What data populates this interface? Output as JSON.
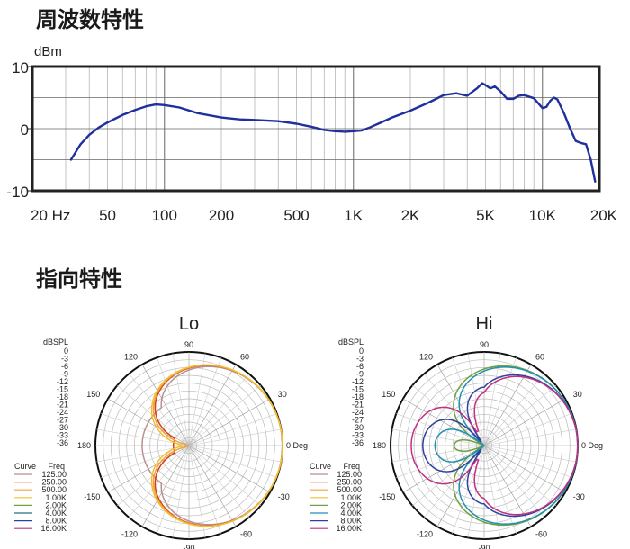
{
  "sections": {
    "freq_title": "周波数特性",
    "dir_title": "指向特性"
  },
  "chart_data": [
    {
      "type": "line",
      "ylabel": "dBm",
      "xscale": "log",
      "xlim": [
        20,
        20000
      ],
      "ylim": [
        -10,
        10
      ],
      "grid": true,
      "y_ticks": [
        {
          "value": 10,
          "label": "10"
        },
        {
          "value": 0,
          "label": "0"
        },
        {
          "value": -10,
          "label": "-10"
        }
      ],
      "x_ticks": [
        {
          "value": 20,
          "label": "20 Hz"
        },
        {
          "value": 50,
          "label": "50"
        },
        {
          "value": 100,
          "label": "100"
        },
        {
          "value": 200,
          "label": "200"
        },
        {
          "value": 500,
          "label": "500"
        },
        {
          "value": 1000,
          "label": "1K"
        },
        {
          "value": 2000,
          "label": "2K"
        },
        {
          "value": 5000,
          "label": "5K"
        },
        {
          "value": 10000,
          "label": "10K"
        },
        {
          "value": 20000,
          "label": "20K"
        }
      ],
      "series": [
        {
          "color": "#1f2f9e",
          "x": [
            32,
            36,
            40,
            45,
            50,
            60,
            70,
            80,
            90,
            100,
            120,
            150,
            200,
            250,
            300,
            400,
            500,
            600,
            700,
            800,
            900,
            1000,
            1100,
            1200,
            1400,
            1600,
            2000,
            2500,
            3000,
            3500,
            4000,
            4500,
            4800,
            5000,
            5300,
            5600,
            6000,
            6500,
            7000,
            7500,
            8000,
            9000,
            10000,
            10500,
            11000,
            11500,
            12000,
            13000,
            14000,
            15000,
            16000,
            17000,
            18000,
            19000
          ],
          "y": [
            -5,
            -2.5,
            -1,
            0.2,
            1,
            2.2,
            3,
            3.6,
            3.9,
            3.8,
            3.4,
            2.5,
            1.8,
            1.5,
            1.4,
            1.2,
            0.8,
            0.3,
            -0.2,
            -0.4,
            -0.5,
            -0.4,
            -0.3,
            0.1,
            1,
            1.8,
            2.9,
            4.2,
            5.4,
            5.7,
            5.3,
            6.5,
            7.3,
            7,
            6.5,
            6.8,
            6,
            4.8,
            4.8,
            5.3,
            5.4,
            4.9,
            3.3,
            3.5,
            4.5,
            5,
            4.7,
            2.5,
            0,
            -2,
            -2.3,
            -2.5,
            -5,
            -8.5
          ]
        }
      ]
    },
    {
      "type": "polar",
      "title": "Lo",
      "angle_labels": [
        {
          "angle": 90,
          "label": "90"
        },
        {
          "angle": 60,
          "label": "60"
        },
        {
          "angle": 30,
          "label": "30"
        },
        {
          "angle": 0,
          "label": "0 Deg"
        },
        {
          "angle": -30,
          "label": "-30"
        },
        {
          "angle": -60,
          "label": "-60"
        },
        {
          "angle": -90,
          "label": "-90"
        },
        {
          "angle": -120,
          "label": "-120"
        },
        {
          "angle": -150,
          "label": "-150"
        },
        {
          "angle": 180,
          "label": "180"
        },
        {
          "angle": 150,
          "label": "150"
        },
        {
          "angle": 120,
          "label": "120"
        }
      ],
      "r_unit": "dBSPL",
      "r_labels": [
        "0",
        "-3",
        "-6",
        "-9",
        "-12",
        "-15",
        "-18",
        "-21",
        "-24",
        "-27",
        "-30",
        "-33",
        "-36"
      ],
      "rlim": [
        -36,
        0
      ],
      "legend": {
        "curve_header": "Curve",
        "freq_header": "Freq",
        "placement": "left"
      },
      "series": [
        {
          "name": "125.00",
          "color": "#b89090",
          "pattern": "cardioid",
          "a": 0.45,
          "depth": -18
        },
        {
          "name": "250.00",
          "color": "#d84010",
          "pattern": "cardioid",
          "a": 0.49,
          "depth": -30
        },
        {
          "name": "500.00",
          "color": "#f0a040",
          "pattern": "cardioid",
          "a": 0.5,
          "depth": -36
        },
        {
          "name": "1.00K",
          "color": "#f0c030",
          "pattern": "cardioid",
          "a": 0.51,
          "depth": -33
        },
        {
          "name": "2.00K",
          "color": "#70a040",
          "pattern": "none"
        },
        {
          "name": "4.00K",
          "color": "#207080",
          "pattern": "none"
        },
        {
          "name": "8.00K",
          "color": "#3040a0",
          "pattern": "none"
        },
        {
          "name": "16.00K",
          "color": "#c03080",
          "pattern": "none"
        }
      ]
    },
    {
      "type": "polar",
      "title": "Hi",
      "angle_labels": [
        {
          "angle": 90,
          "label": "90"
        },
        {
          "angle": 60,
          "label": "60"
        },
        {
          "angle": 30,
          "label": "30"
        },
        {
          "angle": 0,
          "label": "0 Deg"
        },
        {
          "angle": -30,
          "label": "-30"
        },
        {
          "angle": -60,
          "label": "-60"
        },
        {
          "angle": -90,
          "label": "-90"
        },
        {
          "angle": -120,
          "label": "-120"
        },
        {
          "angle": -150,
          "label": "-150"
        },
        {
          "angle": 180,
          "label": "180"
        },
        {
          "angle": 150,
          "label": "150"
        },
        {
          "angle": 120,
          "label": "120"
        }
      ],
      "r_unit": "dBSPL",
      "r_labels": [
        "0",
        "-3",
        "-6",
        "-9",
        "-12",
        "-15",
        "-18",
        "-21",
        "-24",
        "-27",
        "-30",
        "-33",
        "-36"
      ],
      "rlim": [
        -36,
        0
      ],
      "legend": {
        "curve_header": "Curve",
        "freq_header": "Freq",
        "placement": "left"
      },
      "series": [
        {
          "name": "125.00",
          "color": "#b89090",
          "pattern": "none"
        },
        {
          "name": "250.00",
          "color": "#d84010",
          "pattern": "none"
        },
        {
          "name": "500.00",
          "color": "#f0a040",
          "pattern": "none"
        },
        {
          "name": "1.00K",
          "color": "#f0c030",
          "pattern": "none"
        },
        {
          "name": "2.00K",
          "color": "#70a040",
          "pattern": "cardioid",
          "a": 0.47,
          "depth": -36
        },
        {
          "name": "4.00K",
          "color": "#2090b0",
          "pattern": "cardioid",
          "a": 0.43,
          "depth": -36
        },
        {
          "name": "8.00K",
          "color": "#3040a0",
          "pattern": "cardioid_narrow",
          "a": 0.38,
          "depth": -34
        },
        {
          "name": "16.00K",
          "color": "#c03080",
          "pattern": "cardioid_narrow",
          "a": 0.3,
          "depth": -30
        }
      ]
    }
  ]
}
